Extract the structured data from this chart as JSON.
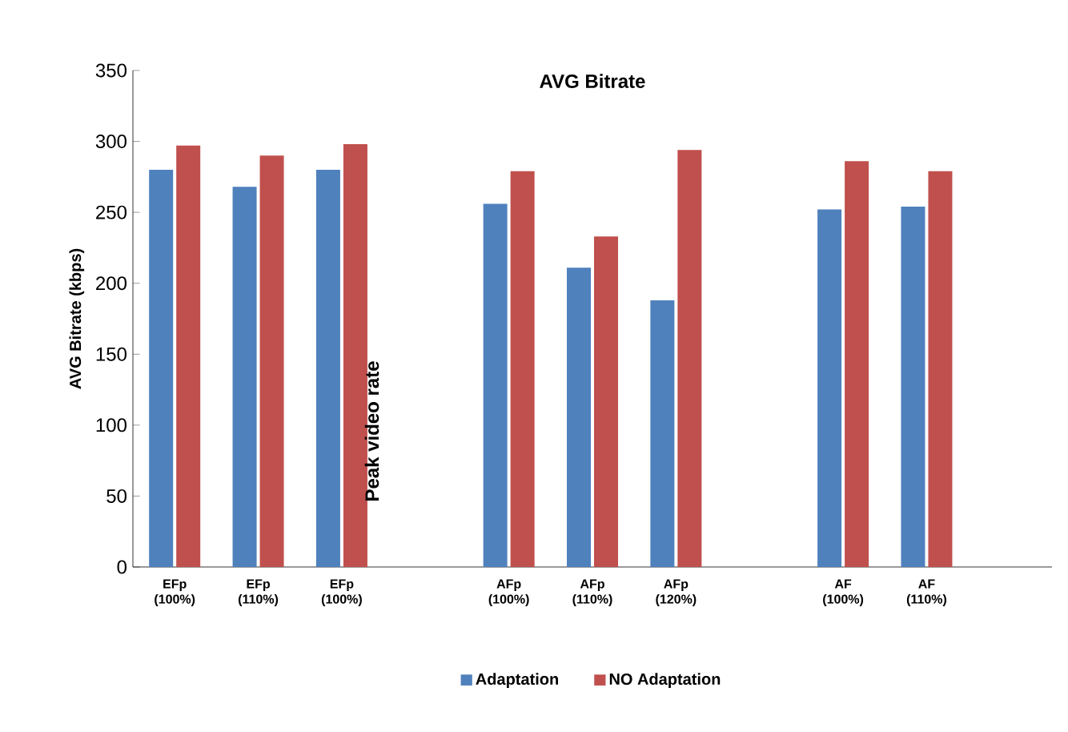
{
  "chart_data": {
    "type": "bar",
    "title": "AVG Bitrate",
    "ylabel": "AVG Bitrate (kbps)",
    "categories": [
      "EFp (100%)",
      "EFp (110%)",
      "EFp (100%)",
      null,
      "AFp (100%)",
      "AFp (110%)",
      "AFp (120%)",
      null,
      "AF (100%)",
      "AF (110%)",
      null
    ],
    "series": [
      {
        "name": "Adaptation",
        "color": "#4f81bd",
        "values": [
          280,
          268,
          280,
          null,
          256,
          211,
          188,
          null,
          252,
          254,
          null
        ]
      },
      {
        "name": "NO Adaptation",
        "color": "#c0504d",
        "values": [
          297,
          290,
          298,
          null,
          279,
          233,
          294,
          null,
          286,
          279,
          null
        ]
      }
    ],
    "ylim": [
      0,
      350
    ],
    "yticks": [
      0,
      50,
      100,
      150,
      200,
      250,
      300,
      350
    ],
    "annotations": [
      "Peak video rate"
    ],
    "legend": "bottom",
    "grid": false
  }
}
